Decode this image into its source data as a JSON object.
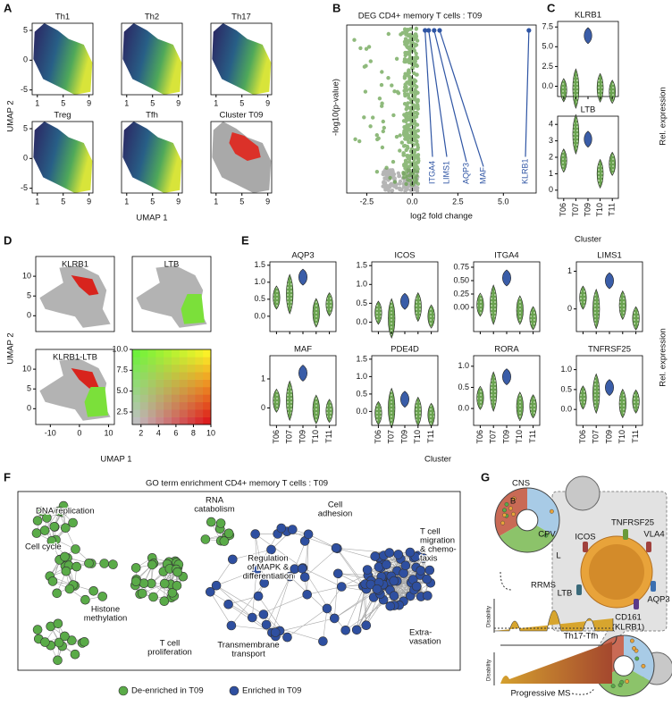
{
  "panel_labels": [
    "A",
    "B",
    "C",
    "D",
    "E",
    "F",
    "G"
  ],
  "a": {
    "xlabel": "UMAP 1",
    "ylabel": "UMAP 2",
    "xlim": [
      0.2,
      9.6
    ],
    "ylim": [
      -5.8,
      6.2
    ],
    "xticks": [
      1,
      5,
      9
    ],
    "yticks": [
      -5,
      0,
      5
    ],
    "plots": [
      {
        "title": "Th1",
        "style": "density"
      },
      {
        "title": "Th2",
        "style": "density"
      },
      {
        "title": "Th17",
        "style": "density"
      },
      {
        "title": "Treg",
        "style": "density"
      },
      {
        "title": "Tfh",
        "style": "density"
      },
      {
        "title": "Cluster T09",
        "style": "cluster"
      }
    ]
  },
  "b": {
    "title": "DEG CD4+ memory T cells : T09",
    "xlabel": "log2 fold change",
    "ylabel": "-log10(p-value)",
    "xlim": [
      -3.6,
      6.8
    ],
    "xticks": [
      -2.5,
      {
        "value": 0,
        "label": "0.0"
      },
      2.5,
      {
        "value": 5,
        "label": "5.0"
      }
    ],
    "color": "#2f55a4",
    "genes": [
      {
        "name": "ITGA4",
        "log2fc": 0.7
      },
      {
        "name": "LIMS1",
        "log2fc": 0.9
      },
      {
        "name": "AQP3",
        "log2fc": 1.2
      },
      {
        "name": "MAF",
        "log2fc": 1.5
      },
      {
        "name": "KLRB1",
        "log2fc": 6.4
      }
    ]
  },
  "c": {
    "categories": [
      "T06",
      "T07",
      "T09",
      "T10",
      "T11"
    ],
    "xlabel": "Cluster",
    "side_label": "Rel. expression",
    "color": "#6aa350",
    "highlight_color": "#3a5da8",
    "highlight_index": 2,
    "genes": [
      {
        "name": "KLRB1",
        "ylim": [
          -1.3,
          8.2
        ],
        "yticks": [
          {
            "value": 0,
            "label": "0.0"
          },
          2.5,
          {
            "value": 5,
            "label": "5.0"
          },
          7.5
        ],
        "values": [
          -0.5,
          -0.3,
          6.4,
          -0.2,
          -0.7
        ]
      },
      {
        "name": "LTB",
        "ylim": [
          -0.5,
          4.5
        ],
        "yticks": [
          0,
          1,
          2,
          3,
          4
        ],
        "values": [
          1.8,
          3.4,
          3.1,
          1.0,
          1.6
        ]
      }
    ]
  },
  "d": {
    "xlabel": "UMAP 1",
    "ylabel": "UMAP 2",
    "xlim": [
      -15,
      12
    ],
    "ylim": [
      -4,
      15
    ],
    "xticks": [
      -10,
      0,
      10
    ],
    "yticks": [
      0,
      5,
      10
    ],
    "plots": [
      {
        "title": "KLRB1",
        "style": "red"
      },
      {
        "title": "LTB",
        "style": "green"
      },
      {
        "title": "KLRB1-LTB",
        "style": "both"
      }
    ],
    "legend_grid": {
      "xlim": [
        1,
        10
      ],
      "ylim": [
        1,
        10
      ],
      "xticks": [
        2,
        4,
        6,
        8,
        10
      ],
      "yticks": [
        2.5,
        {
          "value": 5,
          "label": "5.0"
        },
        7.5,
        {
          "value": 10,
          "label": "10.0"
        }
      ]
    }
  },
  "e": {
    "categories": [
      "T06",
      "T07",
      "T09",
      "T10",
      "T11"
    ],
    "xlabel": "Cluster",
    "side_label": "Rel. expression",
    "genes": [
      {
        "name": "AQP3",
        "ylim": [
          -0.45,
          1.6
        ],
        "yticks": [
          {
            "value": 0,
            "label": "0.0"
          },
          0.5,
          {
            "value": 1,
            "label": "1.0"
          },
          1.5
        ],
        "values": [
          0.55,
          0.65,
          1.15,
          0.1,
          0.35
        ]
      },
      {
        "name": "ICOS",
        "ylim": [
          -0.25,
          1.6
        ],
        "yticks": [
          {
            "value": 0,
            "label": "0.0"
          },
          0.5,
          {
            "value": 1,
            "label": "1.0"
          },
          1.5
        ],
        "values": [
          0.25,
          0.1,
          0.55,
          0.4,
          0.15
        ]
      },
      {
        "name": "ITGA4",
        "ylim": [
          -0.45,
          0.85
        ],
        "yticks": [
          {
            "value": 0,
            "label": "0.00"
          },
          0.25,
          {
            "value": 0.5,
            "label": "0.50"
          },
          0.75
        ],
        "values": [
          0.05,
          0.05,
          0.55,
          -0.05,
          -0.2
        ]
      },
      {
        "name": "LIMS1",
        "ylim": [
          -0.6,
          1.25
        ],
        "yticks": [
          0,
          1
        ],
        "values": [
          0.3,
          0.0,
          0.75,
          0.1,
          -0.25
        ]
      },
      {
        "name": "MAF",
        "ylim": [
          -0.6,
          1.8
        ],
        "yticks": [
          0,
          1
        ],
        "values": [
          0.25,
          0.25,
          1.2,
          -0.05,
          -0.1
        ]
      },
      {
        "name": "PDE4D",
        "ylim": [
          -0.4,
          1.6
        ],
        "yticks": [
          {
            "value": 0,
            "label": "0.0"
          },
          0.5,
          {
            "value": 1,
            "label": "1.0"
          },
          1.5
        ],
        "values": [
          -0.05,
          0.1,
          0.35,
          0.0,
          -0.1
        ]
      },
      {
        "name": "RORA",
        "ylim": [
          -0.4,
          1.25
        ],
        "yticks": [
          {
            "value": 0,
            "label": "0.0"
          },
          0.5,
          {
            "value": 1,
            "label": "1.0"
          }
        ],
        "values": [
          0.25,
          0.4,
          0.75,
          0.05,
          0.05
        ]
      },
      {
        "name": "TNFRSF25",
        "ylim": [
          -0.4,
          1.35
        ],
        "yticks": [
          {
            "value": 0,
            "label": "0.0"
          },
          0.5,
          {
            "value": 1,
            "label": "1.0"
          }
        ],
        "values": [
          0.3,
          0.4,
          0.55,
          0.15,
          0.2
        ]
      }
    ]
  },
  "f": {
    "title": "GO term enrichment CD4+ memory T cells : T09",
    "labels": [
      [
        "DNA replication"
      ],
      [
        "Cell cycle"
      ],
      [
        "Histone",
        "methylation"
      ],
      [
        "T cell",
        "proliferation"
      ],
      [
        "RNA",
        "catabolism"
      ],
      [
        "Cell",
        "adhesion"
      ],
      [
        "T cell",
        "migration",
        "& chemo-",
        "taxis"
      ],
      [
        "Regulation",
        "of MAPK &",
        "differentiation"
      ],
      [
        "Transmembrane",
        "transport"
      ],
      [
        "Extra-",
        "vasation"
      ]
    ],
    "legend": [
      {
        "name": "De-enriched in T09",
        "color": "#5aab48"
      },
      {
        "name": "Enriched in T09",
        "color": "#2e4fa0"
      }
    ]
  },
  "g": {
    "sites": [
      "CNS",
      "B",
      "CPV",
      "L"
    ],
    "markers": [
      "TNFRSF25",
      "ICOS",
      "VLA4",
      "LTB",
      "AQP3"
    ],
    "marker_multi": [
      "CD161",
      "(KLRB1)"
    ],
    "cell": "Th17-Tfh",
    "rrms": "RRMS",
    "disability": "Disability",
    "progressive": "Progressive MS"
  }
}
